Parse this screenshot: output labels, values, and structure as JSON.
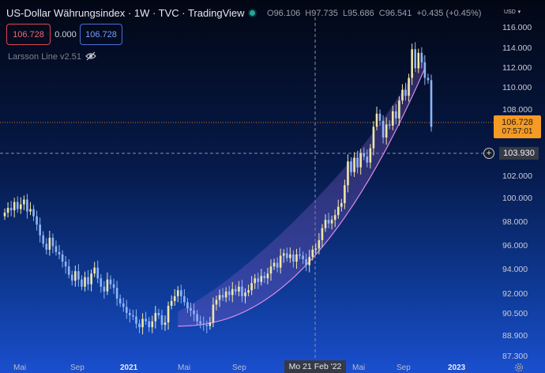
{
  "header": {
    "title": "US-Dollar Währungsindex · 1W · TVC · TradingView",
    "ohlc": [
      {
        "label": "O",
        "value": "96.106"
      },
      {
        "label": "H",
        "value": "97.735"
      },
      {
        "label": "L",
        "value": "95.686"
      },
      {
        "label": "C",
        "value": "96.541"
      }
    ],
    "change": "+0.435 (+0.45%)"
  },
  "price_boxes": {
    "sell": "106.728",
    "spread": "0.000",
    "buy": "106.728"
  },
  "indicator": {
    "name": "Larsson Line v2.51",
    "icon": "eye-hidden-icon"
  },
  "axis": {
    "currency": "USD",
    "y_labels": [
      "116.000",
      "114.000",
      "112.000",
      "110.000",
      "108.000",
      "102.000",
      "100.000",
      "98.000",
      "96.000",
      "94.000",
      "92.000",
      "90.500",
      "88.900",
      "87.300"
    ],
    "x_labels": [
      "Mai",
      "Sep",
      "2021",
      "Mai",
      "Sep",
      "Mai",
      "Sep",
      "2023"
    ]
  },
  "crosshair": {
    "date_label": "Mo 21 Feb '22",
    "price_label": "103.930"
  },
  "last_price": {
    "price": "106.728",
    "countdown": "07:57:01"
  },
  "colors": {
    "candle_up": "#f0e6a6",
    "candle_down": "#8fb4f5",
    "band": "#7b5bc4",
    "band_edge": "#d98be6",
    "last_price": "#f59a23"
  },
  "chart_data": {
    "type": "candlestick",
    "title": "US-Dollar Währungsindex · 1W · TVC · TradingView",
    "series": [
      {
        "name": "",
        "values": [
          99.5,
          99.9,
          99.7,
          100.4,
          99.8,
          100.2,
          100.6,
          99.6,
          99.8,
          99.2,
          98.5,
          97.6,
          96.9,
          96.4,
          97.4,
          96.7,
          96.2,
          96.0,
          95.4,
          95.0,
          94.3,
          93.8,
          94.6,
          93.9,
          93.3,
          94.1,
          93.5,
          94.4,
          94.9,
          94.0,
          93.3,
          92.9,
          93.9,
          93.5,
          93.2,
          92.3,
          91.9,
          91.6,
          91.1,
          90.9,
          90.8,
          90.2,
          89.9,
          90.6,
          90.4,
          89.9,
          90.4,
          91.1,
          90.9,
          90.1,
          90.3,
          91.7,
          92.1,
          92.5,
          93.0,
          92.5,
          92.0,
          91.5,
          91.3,
          91.0,
          90.4,
          90.2,
          90.1,
          90.0,
          90.3,
          91.8,
          92.2,
          92.6,
          92.4,
          92.9,
          92.6,
          93.1,
          92.9,
          93.3,
          92.5,
          92.8,
          93.0,
          93.6,
          94.0,
          93.7,
          94.2,
          94.0,
          94.4,
          95.0,
          95.3,
          94.9,
          95.9,
          96.1,
          95.7,
          96.0,
          95.4,
          96.0,
          95.9,
          95.6,
          95.1,
          95.8,
          96.4,
          96.5,
          97.2,
          98.2,
          98.9,
          98.6,
          98.9,
          99.3,
          100.0,
          100.3,
          101.8,
          103.8,
          102.9,
          104.1,
          103.3,
          104.5,
          104.2,
          103.7,
          104.9,
          106.7,
          107.8,
          107.2,
          105.8,
          106.9,
          106.8,
          108.0,
          107.4,
          108.9,
          109.8,
          109.3,
          110.8,
          113.2,
          111.6,
          112.9,
          112.1,
          110.8,
          110.6,
          106.7
        ]
      }
    ],
    "ylim": [
      86.5,
      117
    ],
    "grid": false
  }
}
